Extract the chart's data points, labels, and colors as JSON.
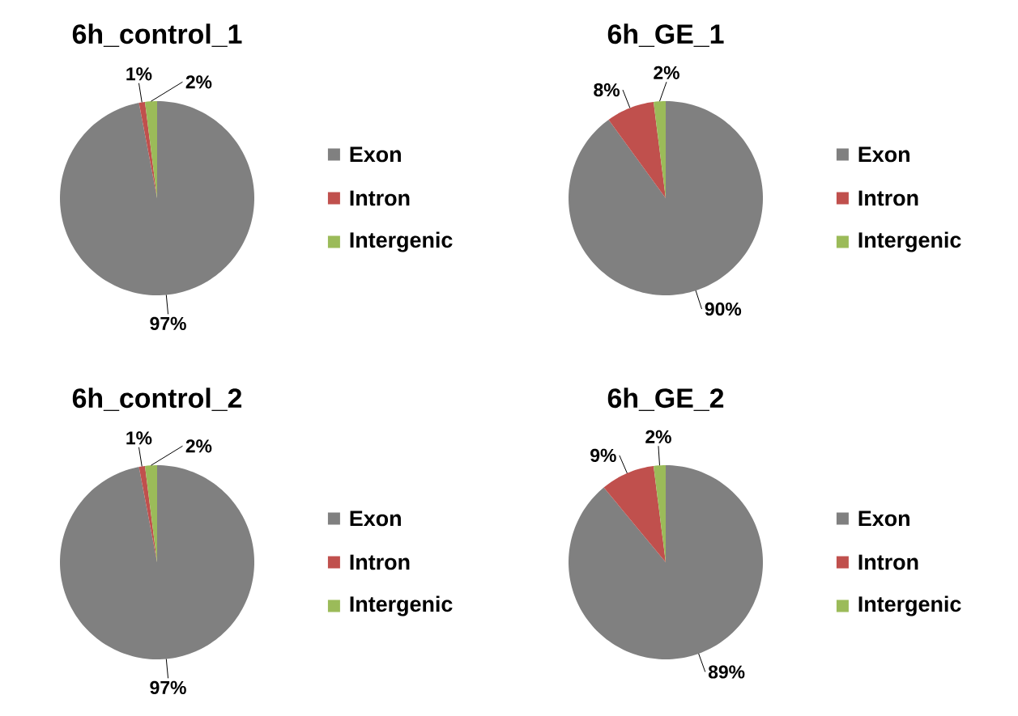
{
  "chart_data": [
    {
      "type": "pie",
      "title": "6h_control_1",
      "categories": [
        "Exon",
        "Intron",
        "Intergenic"
      ],
      "values": [
        97,
        1,
        2
      ],
      "colors": [
        "#808080",
        "#c0504d",
        "#9bbb59"
      ],
      "value_labels": [
        "97%",
        "1%",
        "2%"
      ],
      "legend": "right"
    },
    {
      "type": "pie",
      "title": "6h_GE_1",
      "categories": [
        "Exon",
        "Intron",
        "Intergenic"
      ],
      "values": [
        90,
        8,
        2
      ],
      "colors": [
        "#808080",
        "#c0504d",
        "#9bbb59"
      ],
      "value_labels": [
        "90%",
        "8%",
        "2%"
      ],
      "legend": "right"
    },
    {
      "type": "pie",
      "title": "6h_control_2",
      "categories": [
        "Exon",
        "Intron",
        "Intergenic"
      ],
      "values": [
        97,
        1,
        2
      ],
      "colors": [
        "#808080",
        "#c0504d",
        "#9bbb59"
      ],
      "value_labels": [
        "97%",
        "1%",
        "2%"
      ],
      "legend": "right"
    },
    {
      "type": "pie",
      "title": "6h_GE_2",
      "categories": [
        "Exon",
        "Intron",
        "Intergenic"
      ],
      "values": [
        89,
        9,
        2
      ],
      "colors": [
        "#808080",
        "#c0504d",
        "#9bbb59"
      ],
      "value_labels": [
        "89%",
        "9%",
        "2%"
      ],
      "legend": "right"
    }
  ]
}
